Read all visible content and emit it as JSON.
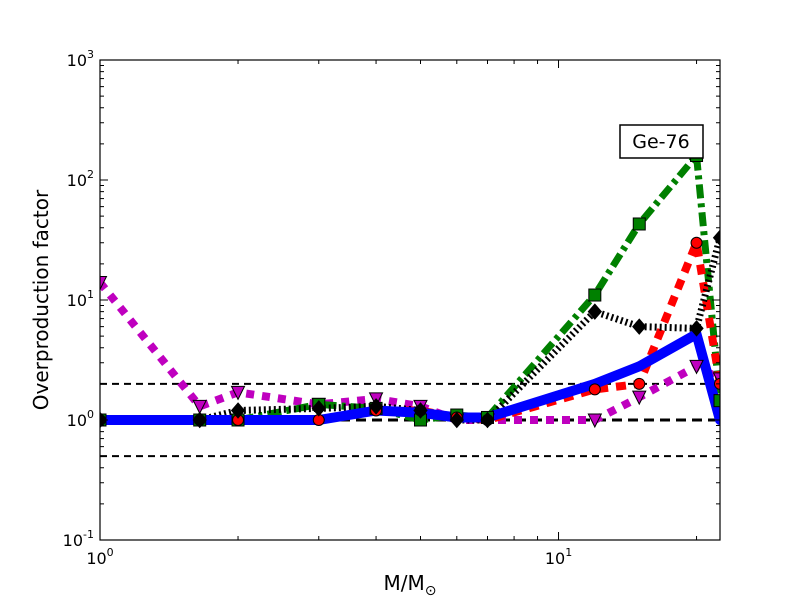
{
  "chart_data": {
    "type": "line",
    "xscale": "log",
    "yscale": "log",
    "xlim": [
      1,
      22.5
    ],
    "ylim": [
      0.1,
      1000
    ],
    "xlabel_main": "M/M",
    "xlabel_sub": "⊙",
    "ylabel": "Overproduction factor",
    "annotation": "Ge-76",
    "x_ticks": [
      {
        "value": 1,
        "base": "10",
        "exp": "0"
      },
      {
        "value": 10,
        "base": "10",
        "exp": "1"
      }
    ],
    "y_ticks": [
      {
        "value": 0.1,
        "base": "10",
        "exp": "-1"
      },
      {
        "value": 1,
        "base": "10",
        "exp": "0"
      },
      {
        "value": 10,
        "base": "10",
        "exp": "1"
      },
      {
        "value": 100,
        "base": "10",
        "exp": "2"
      },
      {
        "value": 1000,
        "base": "10",
        "exp": "3"
      }
    ],
    "reference_lines": [
      {
        "y": 2.0,
        "style": "dashed",
        "weight": "thin"
      },
      {
        "y": 1.0,
        "style": "dashed",
        "weight": "thick"
      },
      {
        "y": 0.5,
        "style": "dashed",
        "weight": "thin"
      }
    ],
    "series": [
      {
        "name": "magenta-triangles",
        "color": "#bf00bf",
        "dash": "dotted-heavy",
        "marker": "triangle-down",
        "x": [
          1.0,
          1.65,
          2.0,
          3.0,
          4.0,
          5.0,
          6.0,
          7.0,
          12.0,
          15.0,
          20.0,
          22.5
        ],
        "y": [
          14.0,
          1.3,
          1.7,
          1.35,
          1.5,
          1.3,
          1.0,
          1.0,
          1.0,
          1.55,
          2.8,
          2.2
        ]
      },
      {
        "name": "green-squares",
        "color": "#008000",
        "dash": "dashdot-heavy",
        "marker": "square",
        "x": [
          1.0,
          1.65,
          2.0,
          3.0,
          4.0,
          5.0,
          6.0,
          7.0,
          12.0,
          15.0,
          20.0,
          22.5
        ],
        "y": [
          1.0,
          1.0,
          1.0,
          1.35,
          1.25,
          1.0,
          1.1,
          1.05,
          11.0,
          43.0,
          160.0,
          1.45
        ]
      },
      {
        "name": "red-circles",
        "color": "#ff0000",
        "dash": "dashed-heavy",
        "marker": "circle",
        "x": [
          1.0,
          1.65,
          2.0,
          3.0,
          4.0,
          5.0,
          6.0,
          7.0,
          12.0,
          15.0,
          20.0,
          22.5
        ],
        "y": [
          1.0,
          1.0,
          1.0,
          1.0,
          1.2,
          1.2,
          1.05,
          1.0,
          1.8,
          2.0,
          30.0,
          2.0
        ]
      },
      {
        "name": "black-diamonds",
        "color": "#000000",
        "dash": "dotted-hatched",
        "marker": "diamond",
        "x": [
          1.0,
          1.65,
          2.0,
          3.0,
          4.0,
          5.0,
          6.0,
          7.0,
          12.0,
          15.0,
          20.0,
          22.5
        ],
        "y": [
          1.0,
          1.0,
          1.2,
          1.25,
          1.3,
          1.2,
          1.0,
          1.0,
          8.0,
          6.0,
          5.8,
          33.0
        ]
      },
      {
        "name": "blue-solid",
        "color": "#0000ff",
        "dash": "solid",
        "marker": "none",
        "x": [
          1.0,
          1.65,
          2.0,
          3.0,
          4.0,
          5.0,
          6.0,
          7.0,
          12.0,
          15.0,
          20.0,
          22.5
        ],
        "y": [
          1.0,
          1.0,
          1.0,
          1.0,
          1.2,
          1.15,
          1.05,
          1.05,
          2.0,
          2.8,
          5.2,
          1.0
        ]
      }
    ]
  }
}
